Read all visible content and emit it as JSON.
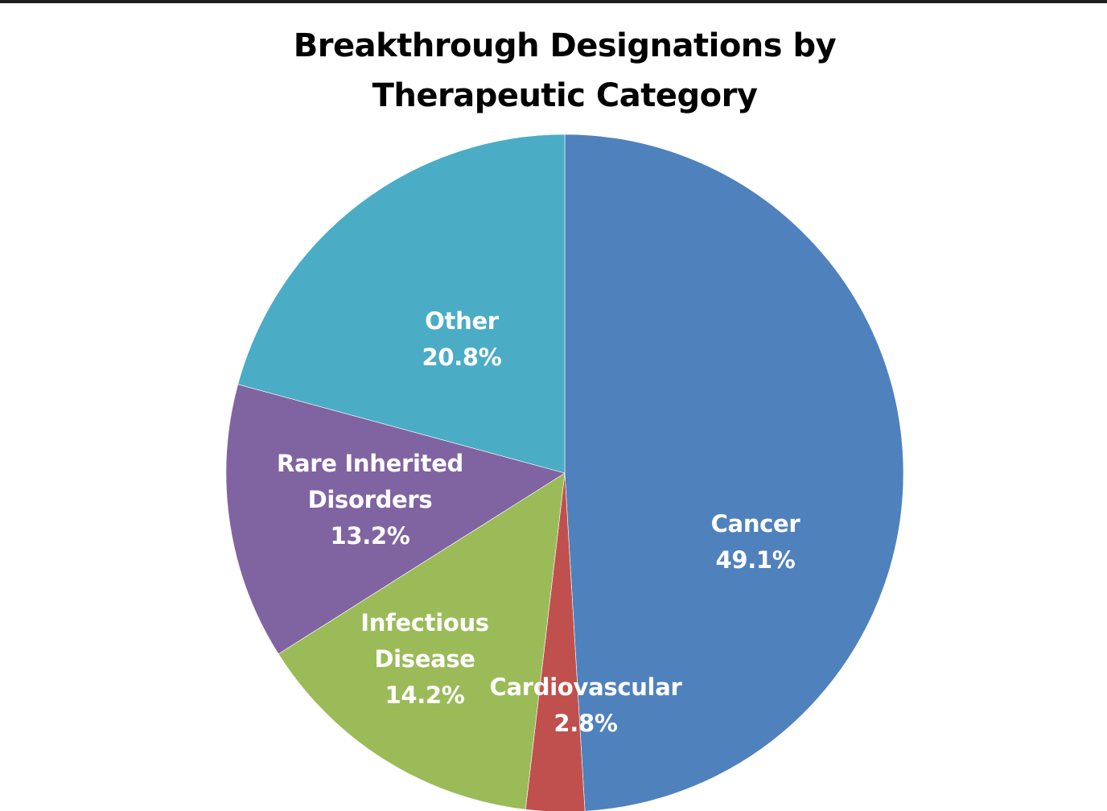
{
  "chart_data": {
    "type": "pie",
    "title": "Breakthrough Designations by Therapeutic Category",
    "title_lines": [
      "Breakthrough Designations by",
      "Therapeutic Category"
    ],
    "categories": [
      "Cancer",
      "Cardiovascular",
      "Infectious Disease",
      "Rare Inherited Disorders",
      "Other"
    ],
    "values": [
      49.1,
      2.8,
      14.2,
      13.2,
      20.8
    ],
    "unit": "%",
    "start_angle": "12 o'clock, clockwise",
    "legend": "none (data labels inside slices)",
    "slices": [
      {
        "label": "Cancer",
        "label_lines": [
          "Cancer"
        ],
        "value": 49.1,
        "value_text": "49.1%",
        "color": "#4F81BD"
      },
      {
        "label": "Cardiovascular",
        "label_lines": [
          "Cardiovascular"
        ],
        "value": 2.8,
        "value_text": "2.8%",
        "color": "#C0504D"
      },
      {
        "label": "Infectious Disease",
        "label_lines": [
          "Infectious",
          "Disease"
        ],
        "value": 14.2,
        "value_text": "14.2%",
        "color": "#9BBB59"
      },
      {
        "label": "Rare Inherited Disorders",
        "label_lines": [
          "Rare Inherited",
          "Disorders"
        ],
        "value": 13.2,
        "value_text": "13.2%",
        "color": "#8064A2"
      },
      {
        "label": "Other",
        "label_lines": [
          "Other"
        ],
        "value": 20.8,
        "value_text": "20.8%",
        "color": "#4BACC6"
      }
    ]
  }
}
